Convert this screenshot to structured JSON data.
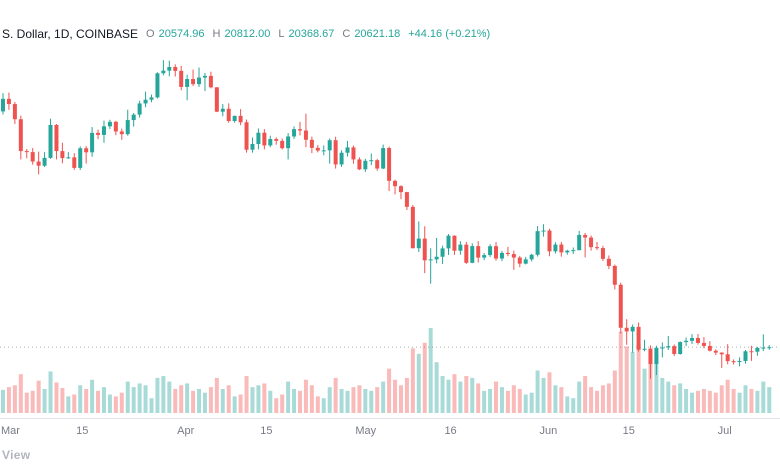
{
  "header": {
    "symbol": "S. Dollar, 1D, COINBASE",
    "o_label": "O",
    "o": "20574.96",
    "h_label": "H",
    "h": "20812.00",
    "l_label": "L",
    "l": "20368.67",
    "c_label": "C",
    "c": "20621.18",
    "change": "+44.16 (+0.21%)"
  },
  "watermark": "View",
  "colors": {
    "up": "#26a69a",
    "down": "#ef5350",
    "up_volume": "rgba(38,166,154,0.4)",
    "down_volume": "rgba(239,83,80,0.4)",
    "axis_text": "#787b86",
    "price_line": "#9598a1"
  },
  "chart_data": {
    "type": "candlestick+volume",
    "title": "Bitcoin / U.S. Dollar",
    "interval": "1D",
    "exchange": "COINBASE",
    "ylim": [
      17000,
      48600
    ],
    "legend_position": "top-left",
    "grid": false,
    "last_close_line": 20621.18,
    "x_ticks": [
      {
        "label": "Mar",
        "index": 0
      },
      {
        "label": "15",
        "index": 14
      },
      {
        "label": "Apr",
        "index": 31
      },
      {
        "label": "15",
        "index": 45
      },
      {
        "label": "May",
        "index": 61
      },
      {
        "label": "16",
        "index": 76
      },
      {
        "label": "Jun",
        "index": 92
      },
      {
        "label": "15",
        "index": 106
      },
      {
        "label": "Jul",
        "index": 122
      }
    ],
    "candles": [
      [
        43200,
        44950,
        42900,
        44400
      ],
      [
        44400,
        45000,
        43350,
        43900
      ],
      [
        43900,
        44100,
        42000,
        42450
      ],
      [
        42450,
        42800,
        38600,
        39400
      ],
      [
        39400,
        39600,
        38700,
        39300
      ],
      [
        39300,
        39700,
        38100,
        38400
      ],
      [
        38400,
        39350,
        37170,
        38000
      ],
      [
        38000,
        39300,
        37870,
        38750
      ],
      [
        38750,
        42500,
        38660,
        41900
      ],
      [
        41900,
        42000,
        38600,
        39400
      ],
      [
        39400,
        40200,
        38230,
        38730
      ],
      [
        38730,
        39300,
        38660,
        38800
      ],
      [
        38800,
        39200,
        37600,
        37790
      ],
      [
        37790,
        39850,
        37590,
        39670
      ],
      [
        39670,
        39890,
        38200,
        39280
      ],
      [
        39280,
        41700,
        38850,
        41140
      ],
      [
        41140,
        41450,
        40550,
        40950
      ],
      [
        40950,
        42320,
        40200,
        41770
      ],
      [
        41770,
        42400,
        41500,
        42200
      ],
      [
        42200,
        42300,
        40920,
        41280
      ],
      [
        41280,
        41550,
        40480,
        41020
      ],
      [
        41020,
        43360,
        40870,
        42370
      ],
      [
        42370,
        43040,
        41750,
        42890
      ],
      [
        42890,
        44220,
        42600,
        43960
      ],
      [
        43960,
        45090,
        43600,
        44320
      ],
      [
        44320,
        44800,
        44080,
        44540
      ],
      [
        44540,
        46950,
        44440,
        46850
      ],
      [
        46850,
        48100,
        46660,
        47100
      ],
      [
        47100,
        48060,
        46560,
        47450
      ],
      [
        47450,
        47700,
        46540,
        47080
      ],
      [
        47080,
        47560,
        45220,
        45540
      ],
      [
        45540,
        46720,
        44270,
        46300
      ],
      [
        46300,
        47200,
        45620,
        45810
      ],
      [
        45810,
        47400,
        45550,
        46440
      ],
      [
        46440,
        46890,
        45150,
        46600
      ],
      [
        46600,
        47000,
        45400,
        45510
      ],
      [
        45510,
        45520,
        43130,
        43170
      ],
      [
        43170,
        43900,
        42730,
        43450
      ],
      [
        43450,
        43970,
        42110,
        42280
      ],
      [
        42280,
        42800,
        42120,
        42770
      ],
      [
        42770,
        43420,
        41880,
        42160
      ],
      [
        42160,
        42420,
        39250,
        39530
      ],
      [
        39530,
        40700,
        39250,
        40080
      ],
      [
        40080,
        41560,
        39570,
        41160
      ],
      [
        41160,
        41500,
        39560,
        39940
      ],
      [
        39940,
        40870,
        39770,
        40550
      ],
      [
        40550,
        40710,
        40010,
        40380
      ],
      [
        40380,
        40600,
        39550,
        39680
      ],
      [
        39680,
        41120,
        38600,
        40800
      ],
      [
        40800,
        41760,
        40570,
        41500
      ],
      [
        41500,
        42200,
        40900,
        41370
      ],
      [
        41370,
        42980,
        39770,
        40480
      ],
      [
        40480,
        40790,
        39210,
        39710
      ],
      [
        39710,
        39980,
        39280,
        39450
      ],
      [
        39450,
        39940,
        39000,
        39470
      ],
      [
        39470,
        40610,
        38200,
        40440
      ],
      [
        40440,
        40770,
        37720,
        38120
      ],
      [
        38120,
        39470,
        37890,
        39240
      ],
      [
        39240,
        40370,
        38880,
        39750
      ],
      [
        39750,
        39920,
        38190,
        38600
      ],
      [
        38600,
        38800,
        37580,
        37650
      ],
      [
        37650,
        38670,
        37400,
        38470
      ],
      [
        38470,
        39170,
        38050,
        38530
      ],
      [
        38530,
        38650,
        37520,
        37730
      ],
      [
        37730,
        40020,
        37680,
        39690
      ],
      [
        39690,
        39840,
        35570,
        36550
      ],
      [
        36550,
        36650,
        35260,
        36040
      ],
      [
        36040,
        36130,
        34800,
        35470
      ],
      [
        35470,
        35500,
        33750,
        34060
      ],
      [
        34060,
        34240,
        30070,
        30100
      ],
      [
        30100,
        32660,
        29730,
        31020
      ],
      [
        31020,
        32200,
        27710,
        28940
      ],
      [
        28940,
        30100,
        26700,
        29030
      ],
      [
        29030,
        31080,
        28650,
        29280
      ],
      [
        29280,
        30340,
        28590,
        30080
      ],
      [
        30080,
        31460,
        29460,
        31300
      ],
      [
        31300,
        31330,
        29460,
        29860
      ],
      [
        29860,
        30780,
        29470,
        30440
      ],
      [
        30440,
        30700,
        28600,
        28700
      ],
      [
        28700,
        30560,
        28660,
        30300
      ],
      [
        30300,
        30780,
        28730,
        29200
      ],
      [
        29200,
        29650,
        28950,
        29440
      ],
      [
        29440,
        30490,
        29250,
        30290
      ],
      [
        30290,
        30680,
        28900,
        29110
      ],
      [
        29110,
        29830,
        28860,
        29650
      ],
      [
        29650,
        30230,
        29330,
        29540
      ],
      [
        29540,
        29870,
        28020,
        29200
      ],
      [
        29200,
        29370,
        28280,
        28620
      ],
      [
        28620,
        29270,
        28550,
        29030
      ],
      [
        29030,
        29560,
        28840,
        29470
      ],
      [
        29470,
        32220,
        29300,
        31730
      ],
      [
        31730,
        32400,
        31210,
        31790
      ],
      [
        31790,
        31960,
        29330,
        29800
      ],
      [
        29800,
        30680,
        29590,
        30450
      ],
      [
        30450,
        30690,
        29290,
        29700
      ],
      [
        29700,
        29950,
        29480,
        29860
      ],
      [
        29860,
        30170,
        29540,
        29910
      ],
      [
        29910,
        31760,
        29890,
        31370
      ],
      [
        31370,
        31560,
        29220,
        31120
      ],
      [
        31120,
        31320,
        29870,
        30200
      ],
      [
        30200,
        30690,
        29930,
        30110
      ],
      [
        30110,
        30330,
        28880,
        29080
      ],
      [
        29080,
        29400,
        28100,
        28400
      ],
      [
        28400,
        28540,
        26150,
        26600
      ],
      [
        26600,
        26800,
        21930,
        22480
      ],
      [
        22480,
        23300,
        20850,
        22130
      ],
      [
        22130,
        22790,
        20100,
        22570
      ],
      [
        22570,
        22980,
        20200,
        20380
      ],
      [
        20380,
        21330,
        20230,
        20470
      ],
      [
        20470,
        20790,
        17600,
        19010
      ],
      [
        19010,
        20760,
        17960,
        20570
      ],
      [
        20570,
        21080,
        19640,
        20590
      ],
      [
        20590,
        21700,
        20350,
        20720
      ],
      [
        20720,
        20880,
        19770,
        19970
      ],
      [
        19970,
        21180,
        19890,
        21110
      ],
      [
        21110,
        21540,
        20740,
        21230
      ],
      [
        21230,
        21870,
        20930,
        21500
      ],
      [
        21500,
        21880,
        20860,
        21030
      ],
      [
        21030,
        21570,
        20510,
        20740
      ],
      [
        20740,
        21200,
        20210,
        20280
      ],
      [
        20280,
        20420,
        19870,
        20100
      ],
      [
        20100,
        20140,
        18630,
        19940
      ],
      [
        19940,
        20900,
        18980,
        19280
      ],
      [
        19280,
        19450,
        18960,
        19240
      ],
      [
        19240,
        19650,
        18780,
        19300
      ],
      [
        19300,
        20350,
        19050,
        20230
      ],
      [
        20230,
        20750,
        19310,
        20190
      ],
      [
        20190,
        20650,
        19800,
        20550
      ],
      [
        20550,
        21850,
        20250,
        20580
      ],
      [
        20574.96,
        20812.0,
        20368.67,
        20621.18
      ]
    ],
    "volumes": [
      25,
      28,
      30,
      42,
      22,
      24,
      35,
      26,
      45,
      33,
      27,
      18,
      20,
      30,
      26,
      36,
      24,
      28,
      20,
      18,
      22,
      34,
      28,
      32,
      30,
      16,
      38,
      40,
      34,
      26,
      30,
      32,
      24,
      26,
      22,
      28,
      38,
      26,
      30,
      18,
      20,
      40,
      28,
      30,
      32,
      24,
      16,
      20,
      34,
      26,
      24,
      36,
      30,
      18,
      16,
      28,
      38,
      26,
      24,
      28,
      30,
      26,
      24,
      28,
      34,
      48,
      36,
      30,
      38,
      70,
      64,
      76,
      92,
      55,
      40,
      36,
      42,
      34,
      40,
      38,
      32,
      24,
      26,
      34,
      28,
      24,
      30,
      26,
      20,
      22,
      46,
      38,
      44,
      30,
      28,
      18,
      16,
      34,
      40,
      28,
      24,
      30,
      32,
      46,
      88,
      72,
      66,
      74,
      48,
      70,
      56,
      38,
      34,
      30,
      32,
      26,
      22,
      24,
      26,
      24,
      22,
      30,
      36,
      26,
      22,
      30,
      26,
      24,
      34,
      28
    ]
  }
}
